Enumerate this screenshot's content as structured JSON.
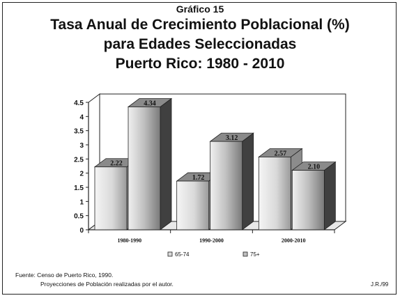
{
  "header": {
    "chart_label": "Gráfico 15",
    "title_lines": [
      "Tasa Anual de Crecimiento Poblacional (%)",
      "para Edades Seleccionadas",
      "Puerto Rico: 1980 - 2010"
    ]
  },
  "footer": {
    "source_line_1": "Fuente: Censo de Puerto Rico, 1990.",
    "source_line_2": "Proyecciones de Población realizadas por el autor.",
    "author": "J.R./99"
  },
  "colors": {
    "series_65_74": "#d9d9d9",
    "series_75_plus": "#bfbfbf",
    "dark": "#404040"
  },
  "chart_data": {
    "type": "bar",
    "categories": [
      "1980-1990",
      "1990-2000",
      "2000-2010"
    ],
    "series": [
      {
        "name": "65-74",
        "values": [
          2.22,
          1.72,
          2.57
        ],
        "labels": [
          "2.22",
          "1.72",
          "2.57"
        ]
      },
      {
        "name": "75+",
        "values": [
          4.34,
          3.12,
          2.1
        ],
        "labels": [
          "4.34",
          "3.12",
          "2.10"
        ]
      }
    ],
    "ylim": [
      0,
      4.5
    ],
    "yticks": [
      "0",
      "0.5",
      "1",
      "1.5",
      "2",
      "2.5",
      "3",
      "3.5",
      "4",
      "4.5"
    ],
    "grid": false,
    "legend_position": "bottom",
    "style": "3d"
  }
}
